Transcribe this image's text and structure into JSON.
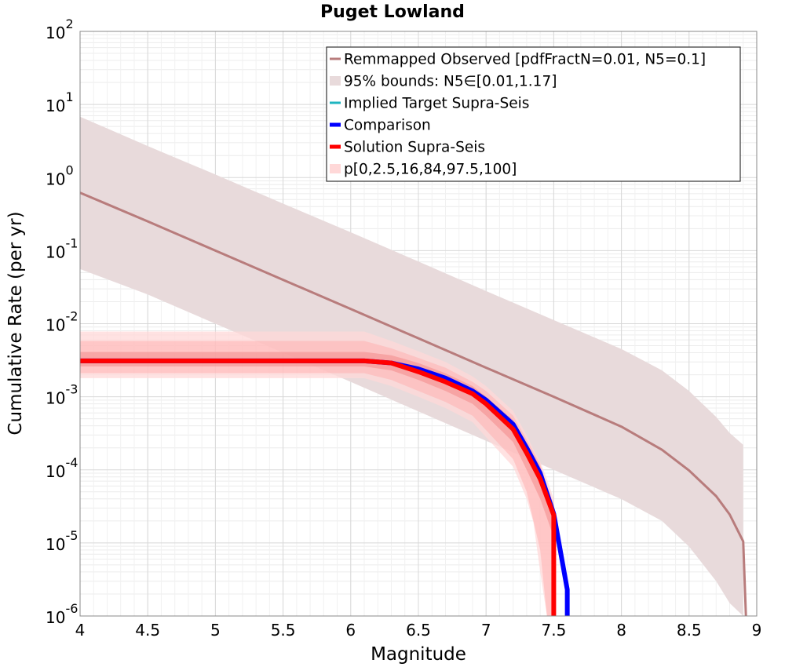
{
  "chart_data": {
    "type": "line",
    "title": "Puget Lowland",
    "xlabel": "Magnitude",
    "ylabel": "Cumulative Rate (per yr)",
    "xlim": [
      4,
      9
    ],
    "ylim_log10": [
      -6,
      2
    ],
    "x_ticks": [
      "4",
      "4.5",
      "5",
      "5.5",
      "6",
      "6.5",
      "7",
      "7.5",
      "8",
      "8.5",
      "9"
    ],
    "y_tick_exponents": [
      "2",
      "1",
      "0",
      "-1",
      "-2",
      "-3",
      "-4",
      "-5",
      "-6"
    ],
    "y_tick_base": "10",
    "grid": true,
    "legend_position": "top-right",
    "colors": {
      "observed": "#b87c7c",
      "observed_band": "#e8dadb",
      "implied_target": "#1fb5c0",
      "comparison": "#0000ff",
      "solution": "#ff0000",
      "percentile_band": "#ffd8d8"
    },
    "legend": [
      {
        "label": "Remmapped Observed [pdfFractN=0.01, N5=0.1]",
        "kind": "line",
        "color": "#b87c7c"
      },
      {
        "label": "95% bounds: N5∈[0.01,1.17]",
        "kind": "band",
        "color": "#e8dadb"
      },
      {
        "label": "Implied Target Supra-Seis",
        "kind": "line",
        "color": "#1fb5c0"
      },
      {
        "label": "Comparison",
        "kind": "thick",
        "color": "#0000ff"
      },
      {
        "label": "Solution Supra-Seis",
        "kind": "thick",
        "color": "#ff0000"
      },
      {
        "label": "p[0,2.5,16,84,97.5,100]",
        "kind": "band",
        "color": "#ffd8d8"
      }
    ],
    "series": [
      {
        "name": "Remmapped Observed",
        "x": [
          4.0,
          4.5,
          5.0,
          5.5,
          6.0,
          6.5,
          7.0,
          7.5,
          8.0,
          8.3,
          8.5,
          8.7,
          8.8,
          8.9,
          8.92
        ],
        "y": [
          0.62,
          0.251,
          0.1,
          0.0398,
          0.0159,
          0.0063,
          0.0025,
          0.001,
          0.00039,
          0.000188,
          9.8e-05,
          4.37e-05,
          2.45e-05,
          1.05e-05,
          1e-06
        ]
      },
      {
        "name": "Comparison",
        "x": [
          4.0,
          6.1,
          6.3,
          6.5,
          6.7,
          6.9,
          7.0,
          7.2,
          7.3,
          7.4,
          7.5,
          7.6,
          7.6
        ],
        "y": [
          0.0031,
          0.0031,
          0.0029,
          0.0024,
          0.0018,
          0.0012,
          0.0009,
          0.00042,
          0.0002,
          9e-05,
          2.5e-05,
          2.3e-06,
          1e-06
        ]
      },
      {
        "name": "Solution Supra-Seis",
        "x": [
          4.0,
          6.1,
          6.3,
          6.5,
          6.7,
          6.9,
          7.0,
          7.2,
          7.3,
          7.4,
          7.5,
          7.5
        ],
        "y": [
          0.0031,
          0.0031,
          0.0029,
          0.0022,
          0.0016,
          0.0011,
          0.0008,
          0.00036,
          0.00017,
          7.5e-05,
          2.4e-05,
          1e-06
        ]
      }
    ],
    "bands": [
      {
        "name": "95% bounds",
        "x": [
          4.0,
          4.5,
          5.0,
          5.5,
          6.0,
          6.5,
          7.0,
          7.5,
          8.0,
          8.3,
          8.5,
          8.7,
          8.8,
          8.9
        ],
        "lower": [
          0.056,
          0.0251,
          0.01,
          0.004,
          0.0016,
          0.00063,
          0.00025,
          0.0001,
          3.98e-05,
          2e-05,
          8.9e-06,
          3e-06,
          1.5e-06,
          1e-06
        ],
        "upper": [
          6.8,
          2.7,
          1.1,
          0.44,
          0.178,
          0.071,
          0.028,
          0.0112,
          0.0045,
          0.0023,
          0.0012,
          0.00053,
          0.00032,
          0.00022
        ]
      },
      {
        "name": "p0-p100",
        "x": [
          4.0,
          6.1,
          6.3,
          6.5,
          6.7,
          6.9,
          7.0,
          7.2,
          7.3,
          7.35,
          7.4,
          7.45,
          7.5
        ],
        "lower": [
          0.0018,
          0.0018,
          0.0014,
          0.001,
          0.0007,
          0.00045,
          0.00028,
          0.00011,
          4e-05,
          1.9e-05,
          4e-06,
          1e-06,
          1e-06
        ],
        "upper": [
          0.0078,
          0.0078,
          0.0058,
          0.0042,
          0.003,
          0.0019,
          0.0014,
          0.00064,
          0.0003,
          0.00019,
          0.00013,
          7.4e-05,
          4e-05
        ]
      },
      {
        "name": "p2.5-p97.5",
        "x": [
          4.0,
          6.1,
          6.3,
          6.5,
          6.7,
          6.9,
          7.0,
          7.2,
          7.3,
          7.4,
          7.45,
          7.5
        ],
        "lower": [
          0.0021,
          0.0021,
          0.0017,
          0.0012,
          0.00085,
          0.00055,
          0.00035,
          0.00014,
          5e-05,
          8e-06,
          1e-06,
          1e-06
        ],
        "upper": [
          0.0058,
          0.0058,
          0.0046,
          0.0034,
          0.0025,
          0.0016,
          0.0012,
          0.00055,
          0.00026,
          0.00012,
          6e-05,
          3.4e-05
        ]
      },
      {
        "name": "p16-p84",
        "x": [
          4.0,
          6.1,
          6.3,
          6.5,
          6.7,
          6.9,
          7.0,
          7.2,
          7.3,
          7.4,
          7.5
        ],
        "lower": [
          0.0026,
          0.0026,
          0.0023,
          0.0017,
          0.0012,
          0.0008,
          0.00055,
          0.00024,
          0.0001,
          4e-05,
          1.2e-05
        ],
        "upper": [
          0.0041,
          0.0041,
          0.0037,
          0.0029,
          0.0021,
          0.0014,
          0.001,
          0.00048,
          0.00023,
          0.00011,
          3e-05
        ]
      }
    ]
  }
}
